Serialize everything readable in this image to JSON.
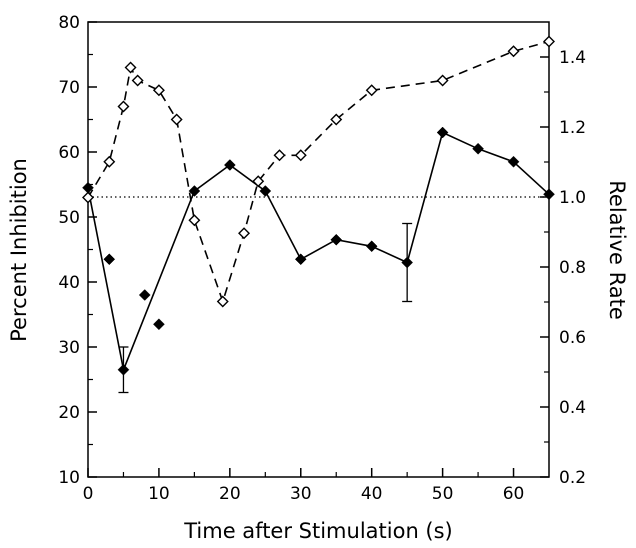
{
  "chart_data": {
    "type": "line",
    "title": "",
    "xlabel": "Time after Stimulation (s)",
    "ylabel_left": "Percent Inhibition",
    "ylabel_right": "Relative Rate",
    "xlim": [
      0,
      65
    ],
    "ylim_left": [
      10,
      80
    ],
    "ylim_right": [
      0.2,
      1.5
    ],
    "xticks": [
      0,
      10,
      20,
      30,
      40,
      50,
      60
    ],
    "yticks_left": [
      10,
      20,
      30,
      40,
      50,
      60,
      70,
      80
    ],
    "yticks_right": [
      0.2,
      0.4,
      0.6,
      0.8,
      1.0,
      1.2,
      1.4
    ],
    "xtick_labels": [
      "0",
      "10",
      "20",
      "30",
      "40",
      "50",
      "60"
    ],
    "ytick_left_labels": [
      "10",
      "20",
      "30",
      "40",
      "50",
      "60",
      "70",
      "80"
    ],
    "ytick_right_labels": [
      "0.2",
      "0.4",
      "0.6",
      "0.8",
      "1.0",
      "1.2",
      "1.4"
    ],
    "reference_line": {
      "axis": "right",
      "y": 1.0,
      "style": "dotted"
    },
    "grid": false,
    "legend": "none",
    "series": [
      {
        "axis": "left",
        "marker": "filled-diamond",
        "line_style": "solid",
        "color": "#000000",
        "points": [
          {
            "x": 0,
            "y": 54.5,
            "connected": true
          },
          {
            "x": 3,
            "y": 43.5,
            "connected": false
          },
          {
            "x": 5,
            "y": 26.5,
            "connected": true
          },
          {
            "x": 8,
            "y": 38,
            "connected": false
          },
          {
            "x": 10,
            "y": 33.5,
            "connected": false
          },
          {
            "x": 15,
            "y": 54,
            "connected": true
          },
          {
            "x": 20,
            "y": 58,
            "connected": true
          },
          {
            "x": 25,
            "y": 54,
            "connected": true
          },
          {
            "x": 30,
            "y": 43.5,
            "connected": true
          },
          {
            "x": 35,
            "y": 46.5,
            "connected": true
          },
          {
            "x": 40,
            "y": 45.5,
            "connected": true
          },
          {
            "x": 45,
            "y": 43,
            "connected": true
          },
          {
            "x": 50,
            "y": 63,
            "connected": true
          },
          {
            "x": 55,
            "y": 60.5,
            "connected": true
          },
          {
            "x": 60,
            "y": 58.5,
            "connected": true
          },
          {
            "x": 65,
            "y": 53.5,
            "connected": true
          }
        ],
        "error_bars": [
          {
            "x": 5,
            "low": 23,
            "high": 30
          },
          {
            "x": 45,
            "low": 37,
            "high": 49
          }
        ]
      },
      {
        "axis": "left",
        "marker": "open-diamond",
        "line_style": "dashed",
        "color": "#000000",
        "points": [
          {
            "x": 0,
            "y": 53
          },
          {
            "x": 3,
            "y": 58.5
          },
          {
            "x": 5,
            "y": 67
          },
          {
            "x": 6,
            "y": 73
          },
          {
            "x": 7,
            "y": 71
          },
          {
            "x": 10,
            "y": 69.5
          },
          {
            "x": 12.5,
            "y": 65
          },
          {
            "x": 15,
            "y": 49.5
          },
          {
            "x": 19,
            "y": 37
          },
          {
            "x": 22,
            "y": 47.5
          },
          {
            "x": 24,
            "y": 55.5
          },
          {
            "x": 27,
            "y": 59.5
          },
          {
            "x": 30,
            "y": 59.5
          },
          {
            "x": 35,
            "y": 65
          },
          {
            "x": 40,
            "y": 69.5
          },
          {
            "x": 50,
            "y": 71
          },
          {
            "x": 60,
            "y": 75.5
          },
          {
            "x": 65,
            "y": 77
          }
        ]
      }
    ]
  }
}
